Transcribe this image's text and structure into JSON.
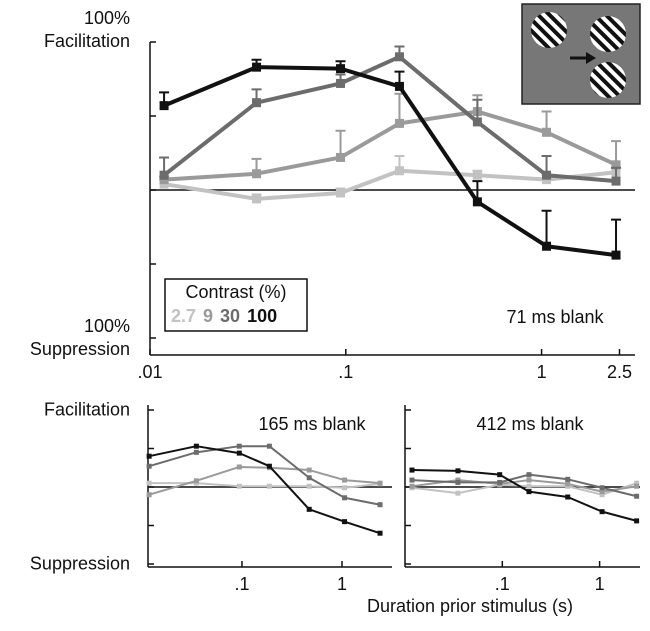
{
  "chart_data": [
    {
      "type": "line",
      "log_x": true,
      "xlim": [
        0.01,
        3
      ],
      "ylim": [
        -100,
        100
      ],
      "xticks": [
        {
          "value": 0.01,
          "label": ".01"
        },
        {
          "value": 0.1,
          "label": ".1"
        },
        1,
        2.5
      ],
      "yticks": [
        {
          "value": 100,
          "label": "100%\nFacilitation"
        },
        {
          "value": 50,
          "label": null
        },
        {
          "value": 0,
          "label": null
        },
        {
          "value": -50,
          "label": null
        },
        {
          "value": -100,
          "label": "100%\nSuppression"
        }
      ],
      "zero_line": true,
      "annotation": "71 ms blank",
      "legend_title": "Contrast (%)",
      "legend": "lower left",
      "x": [
        0.0118,
        0.035,
        0.094,
        0.188,
        0.47,
        1.06,
        2.4
      ],
      "series": [
        {
          "name": "2.7",
          "color": "#c2c2c2",
          "values": [
            4,
            -6,
            -2,
            13,
            10,
            7,
            12
          ],
          "errors": [
            3,
            3,
            3,
            10,
            3,
            3,
            3
          ]
        },
        {
          "name": "9",
          "color": "#9a9a9a",
          "values": [
            7,
            11,
            22,
            45,
            53,
            39,
            17
          ],
          "errors": [
            2,
            10,
            18,
            20,
            11,
            14,
            16
          ]
        },
        {
          "name": "30",
          "color": "#6c6c6c",
          "values": [
            10,
            59,
            72,
            90,
            46,
            10,
            6
          ],
          "errors": [
            12,
            9,
            6,
            7,
            15,
            13,
            9
          ]
        },
        {
          "name": "100",
          "color": "#111111",
          "values": [
            57,
            83,
            82,
            70,
            -8,
            -38,
            -44
          ],
          "errors": [
            9,
            5,
            5,
            10,
            14,
            24,
            24
          ]
        }
      ]
    },
    {
      "type": "line",
      "log_x": true,
      "xlim": [
        0.0115,
        3.16
      ],
      "ylim": [
        -100,
        100
      ],
      "xticks": [
        {
          "value": 0.1,
          "label": ".1"
        },
        1
      ],
      "yticks": [
        {
          "value": 100,
          "label": "Facilitation"
        },
        {
          "value": 50,
          "label": null
        },
        {
          "value": 0,
          "label": null
        },
        {
          "value": -50,
          "label": null
        },
        {
          "value": -100,
          "label": "Suppression"
        }
      ],
      "zero_line": true,
      "annotation": "165 ms blank",
      "x": [
        0.0118,
        0.035,
        0.094,
        0.188,
        0.47,
        1.06,
        2.4
      ],
      "series": [
        {
          "color": "#c2c2c2",
          "values": [
            5,
            5,
            1,
            1,
            1,
            -1,
            4
          ]
        },
        {
          "color": "#9a9a9a",
          "values": [
            -10,
            8,
            26,
            25,
            22,
            9,
            5
          ]
        },
        {
          "color": "#6c6c6c",
          "values": [
            27,
            45,
            53,
            53,
            12,
            -14,
            -23
          ]
        },
        {
          "color": "#111111",
          "values": [
            40,
            53,
            44,
            27,
            -29,
            -45,
            -60
          ]
        }
      ]
    },
    {
      "type": "line",
      "log_x": true,
      "xlim": [
        0.01,
        2.6
      ],
      "ylim": [
        -100,
        100
      ],
      "xticks": [
        {
          "value": 0.1,
          "label": ".1"
        },
        1
      ],
      "yticks": [
        {
          "value": 100,
          "label": null
        },
        {
          "value": 50,
          "label": null
        },
        {
          "value": 0,
          "label": null
        },
        {
          "value": -50,
          "label": null
        },
        {
          "value": -100,
          "label": null
        }
      ],
      "zero_line": true,
      "annotation": "412 ms blank",
      "x_label": "Duration prior stimulus (s)",
      "x": [
        0.0118,
        0.035,
        0.094,
        0.188,
        0.47,
        1.06,
        2.4
      ],
      "series": [
        {
          "color": "#c2c2c2",
          "values": [
            -1,
            -8,
            3,
            1,
            1,
            -10,
            5
          ]
        },
        {
          "color": "#9a9a9a",
          "values": [
            1,
            9,
            4,
            9,
            4,
            -6,
            1
          ]
        },
        {
          "color": "#6c6c6c",
          "values": [
            9,
            6,
            6,
            16,
            10,
            -1,
            -12
          ]
        },
        {
          "color": "#111111",
          "values": [
            22,
            21,
            16,
            -6,
            -13,
            -32,
            -44
          ]
        }
      ]
    }
  ]
}
